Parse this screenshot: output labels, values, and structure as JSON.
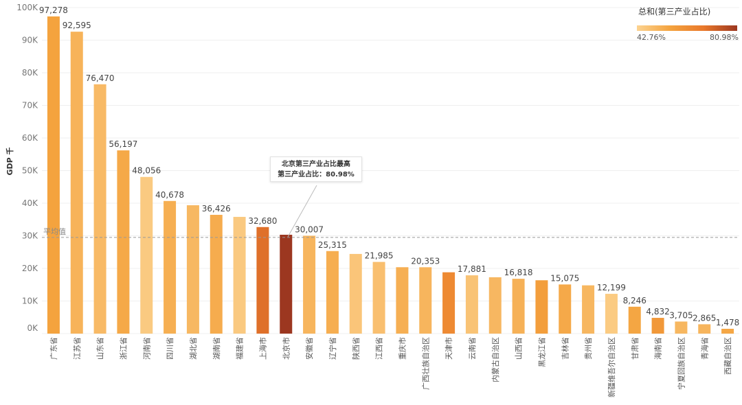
{
  "chart_data": {
    "type": "bar",
    "ylabel": "GDP 千",
    "y_ticks": [
      "0K",
      "10K",
      "20K",
      "30K",
      "40K",
      "50K",
      "60K",
      "70K",
      "80K",
      "90K",
      "100K"
    ],
    "ylim": [
      0,
      100000
    ],
    "grid": true,
    "categories": [
      "广东省",
      "江苏省",
      "山东省",
      "浙江省",
      "河南省",
      "四川省",
      "湖北省",
      "湖南省",
      "福建省",
      "上海市",
      "北京市",
      "安徽省",
      "辽宁省",
      "陕西省",
      "江西省",
      "重庆市",
      "广西壮族自治区",
      "天津市",
      "云南省",
      "内蒙古自治区",
      "山西省",
      "黑龙江省",
      "吉林省",
      "贵州省",
      "新疆维吾尔自治区",
      "甘肃省",
      "海南省",
      "宁夏回族自治区",
      "青海省",
      "西藏自治区"
    ],
    "values": [
      97278,
      92595,
      76470,
      56197,
      48056,
      40678,
      39367,
      36426,
      35804,
      32680,
      30320,
      30007,
      25315,
      24438,
      21985,
      20363,
      20353,
      18810,
      17881,
      17289,
      16818,
      16362,
      15075,
      14806,
      12199,
      8246,
      4832,
      3705,
      2865,
      1478
    ],
    "data_labels": [
      "97,278",
      "92,595",
      "76,470",
      "56,197",
      "48,056",
      "40,678",
      "",
      "36,426",
      "",
      "32,680",
      "",
      "30,007",
      "25,315",
      "",
      "21,985",
      "",
      "20,353",
      "",
      "17,881",
      "",
      "16,818",
      "",
      "15,075",
      "",
      "12,199",
      "8,246",
      "4,832",
      "3,705",
      "2,865",
      "1,478"
    ],
    "tertiary_share": [
      55.5,
      51.3,
      49.3,
      54.0,
      45.2,
      52.4,
      50.0,
      53.0,
      45.3,
      69.9,
      80.98,
      50.8,
      52.6,
      46.5,
      48.0,
      52.3,
      50.7,
      63.0,
      47.0,
      50.1,
      51.7,
      57.0,
      53.8,
      50.3,
      45.0,
      54.8,
      58.9,
      50.3,
      50.7,
      54.4
    ],
    "reference_line": {
      "label": "平均值",
      "value": 29500
    },
    "color_legend": {
      "title": "总和(第三产业占比)",
      "min_label": "42.76%",
      "max_label": "80.98%",
      "min_value": 42.76,
      "max_value": 80.98,
      "colors": [
        "#fcd391",
        "#f4a33e",
        "#e9782b",
        "#9c3720"
      ]
    },
    "annotation": {
      "line1": "北京第三产业占比最高",
      "line2": "第三产业占比：80.98%"
    }
  }
}
